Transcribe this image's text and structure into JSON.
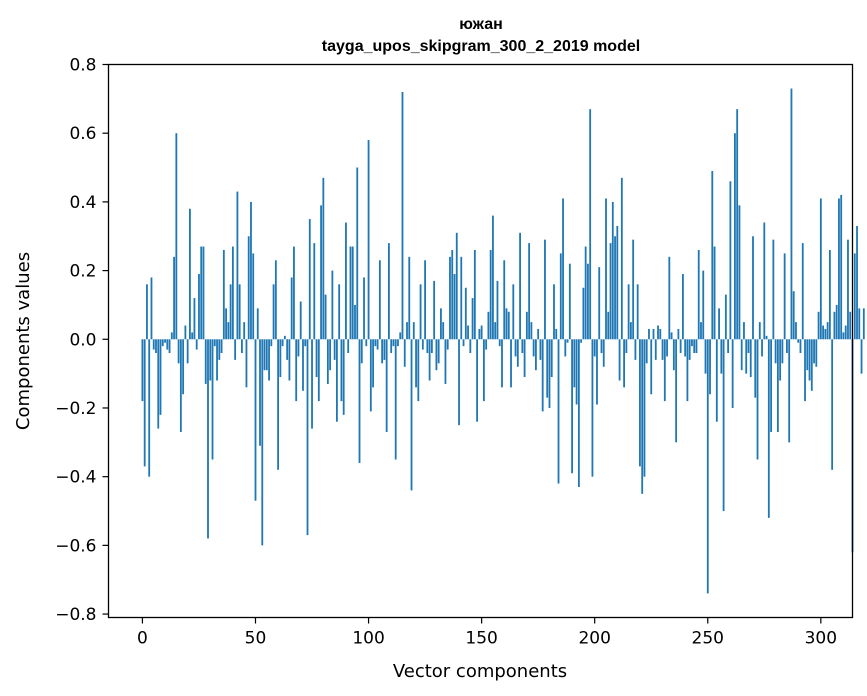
{
  "chart_data": {
    "type": "bar",
    "title": "южан",
    "subtitle": "tayga_upos_skipgram_300_2_2019 model",
    "xlabel": "Vector components",
    "ylabel": "Components values",
    "xlim": [
      -15,
      314
    ],
    "ylim": [
      -0.81,
      0.8
    ],
    "xticks": [
      0,
      50,
      100,
      150,
      200,
      250,
      300
    ],
    "yticks": [
      -0.8,
      -0.6,
      -0.4,
      -0.2,
      0.0,
      0.2,
      0.4,
      0.6,
      0.8
    ],
    "ytick_labels": [
      "−0.8",
      "−0.6",
      "−0.4",
      "−0.2",
      "0.0",
      "0.2",
      "0.4",
      "0.6",
      "0.8"
    ],
    "bar_color": "#1f77b4",
    "values": [
      -0.18,
      -0.37,
      0.16,
      -0.4,
      0.18,
      -0.03,
      -0.04,
      -0.26,
      -0.22,
      -0.02,
      -0.01,
      -0.03,
      -0.04,
      0.02,
      0.24,
      0.6,
      -0.07,
      -0.27,
      -0.16,
      0.04,
      -0.07,
      0.38,
      0.02,
      0.12,
      -0.03,
      0.19,
      0.27,
      0.27,
      -0.13,
      -0.58,
      -0.12,
      -0.35,
      -0.02,
      -0.12,
      -0.06,
      -0.04,
      0.26,
      0.09,
      0.05,
      0.16,
      0.27,
      -0.06,
      0.43,
      0.16,
      -0.04,
      0.05,
      -0.14,
      0.3,
      0.4,
      0.25,
      -0.47,
      0.09,
      -0.31,
      -0.6,
      -0.09,
      -0.09,
      -0.12,
      -0.02,
      0.16,
      0.23,
      -0.38,
      -0.11,
      -0.02,
      0.01,
      -0.06,
      -0.12,
      0.18,
      0.27,
      -0.18,
      -0.05,
      0.11,
      -0.15,
      -0.02,
      -0.57,
      0.35,
      -0.26,
      0.28,
      -0.11,
      -0.18,
      0.39,
      0.47,
      0.13,
      -0.13,
      -0.09,
      0.2,
      -0.06,
      -0.24,
      0.16,
      -0.18,
      -0.22,
      0.34,
      -0.04,
      0.27,
      0.27,
      0.1,
      0.5,
      -0.36,
      -0.07,
      0.18,
      -0.02,
      0.58,
      -0.21,
      -0.14,
      -0.02,
      -0.03,
      0.23,
      -0.07,
      -0.06,
      -0.27,
      0.28,
      -0.04,
      -0.02,
      -0.35,
      -0.02,
      0.02,
      0.72,
      -0.08,
      0.05,
      0.24,
      -0.44,
      0.05,
      -0.14,
      -0.18,
      0.16,
      -0.03,
      0.23,
      -0.04,
      -0.12,
      -0.04,
      0.17,
      -0.09,
      -0.07,
      0.09,
      0.05,
      -0.13,
      -0.03,
      0.24,
      0.26,
      0.19,
      0.31,
      -0.25,
      0.24,
      -0.02,
      0.15,
      0.04,
      -0.04,
      0.12,
      0.26,
      -0.24,
      0.03,
      0.04,
      -0.18,
      -0.03,
      0.08,
      0.26,
      0.36,
      0.05,
      0.17,
      -0.02,
      -0.14,
      0.23,
      0.09,
      0.08,
      -0.14,
      0.16,
      -0.05,
      -0.08,
      0.31,
      -0.04,
      -0.11,
      0.08,
      0.28,
      0.05,
      -0.05,
      -0.09,
      0.03,
      -0.06,
      -0.21,
      0.29,
      -0.17,
      -0.2,
      -0.11,
      0.16,
      0.03,
      -0.42,
      0.25,
      0.41,
      -0.05,
      -0.01,
      0.22,
      -0.39,
      -0.14,
      -0.19,
      -0.43,
      -0.01,
      0.15,
      0.27,
      0.22,
      0.67,
      -0.4,
      -0.05,
      -0.19,
      0.21,
      -0.04,
      -0.08,
      0.41,
      0.08,
      0.28,
      0.4,
      0.3,
      0.33,
      -0.12,
      0.47,
      -0.14,
      -0.04,
      0.16,
      0.05,
      0.29,
      -0.06,
      0.16,
      -0.37,
      -0.45,
      -0.4,
      -0.07,
      0.03,
      -0.16,
      0.03,
      -0.06,
      0.04,
      0.03,
      -0.06,
      -0.18,
      -0.05,
      0.24,
      0.02,
      -0.09,
      -0.3,
      0.03,
      -0.04,
      0.19,
      -0.05,
      -0.18,
      -0.06,
      -0.02,
      -0.04,
      -0.04,
      0.26,
      0.05,
      0.2,
      -0.1,
      -0.74,
      -0.16,
      0.49,
      0.27,
      -0.24,
      0.09,
      -0.1,
      -0.5,
      0.13,
      -0.04,
      0.46,
      -0.2,
      0.6,
      0.67,
      0.39,
      -0.09,
      0.05,
      -0.1,
      -0.04,
      -0.11,
      0.3,
      -0.17,
      -0.35,
      0.05,
      -0.05,
      0.34,
      0.01,
      -0.52,
      -0.27,
      0.29,
      -0.07,
      -0.27,
      -0.12,
      -0.07,
      0.25,
      -0.04,
      -0.3,
      0.73,
      0.14,
      0.05,
      -0.01,
      -0.04,
      0.28,
      -0.18,
      -0.09,
      -0.12,
      -0.15,
      -0.07,
      -0.08,
      0.08,
      0.41,
      0.04,
      0.03,
      0.05,
      0.26,
      -0.38,
      0.08,
      0.1,
      0.41,
      0.42,
      0.02,
      0.04,
      0.29,
      0.08,
      -0.62,
      0.25,
      0.33,
      0.09,
      -0.1,
      0.09
    ]
  }
}
